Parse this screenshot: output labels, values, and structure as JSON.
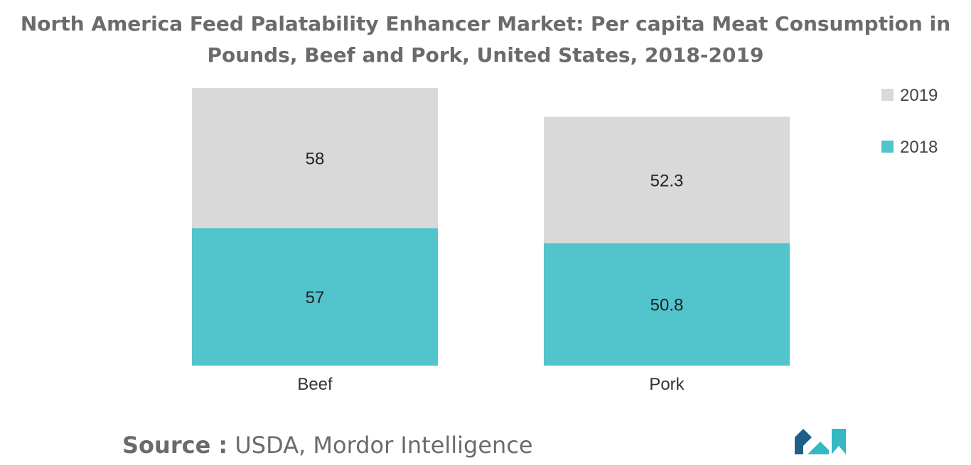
{
  "title_lines": [
    "North America Feed Palatability Enhancer Market: Per capita Meat Consumption in",
    "Pounds, Beef and Pork, United States, 2018-2019"
  ],
  "source": {
    "label": "Source :",
    "text": " USDA, Mordor Intelligence"
  },
  "colors": {
    "s2018": "#52c4cc",
    "s2019": "#d9d9d9",
    "title": "#6b6b6b",
    "logo_dark": "#1e5f8a",
    "logo_teal": "#36b8c4"
  },
  "logo": {
    "name": "mordor-intelligence-logo"
  },
  "chart_data": {
    "type": "bar",
    "stacked": true,
    "title": "North America Feed Palatability Enhancer Market: Per capita Meat Consumption in Pounds, Beef and Pork, United States, 2018-2019",
    "categories": [
      "Beef",
      "Pork"
    ],
    "series": [
      {
        "name": "2018",
        "values": [
          57,
          50.8
        ]
      },
      {
        "name": "2019",
        "values": [
          58,
          52.3
        ]
      }
    ],
    "value_labels": {
      "2018": [
        "57",
        "50.8"
      ],
      "2019": [
        "58",
        "52.3"
      ]
    },
    "legend_order": [
      "2019",
      "2018"
    ],
    "legend_position": "top-right",
    "xlabel": "",
    "ylabel": "",
    "ylim": [
      0,
      115
    ],
    "grid": false
  }
}
